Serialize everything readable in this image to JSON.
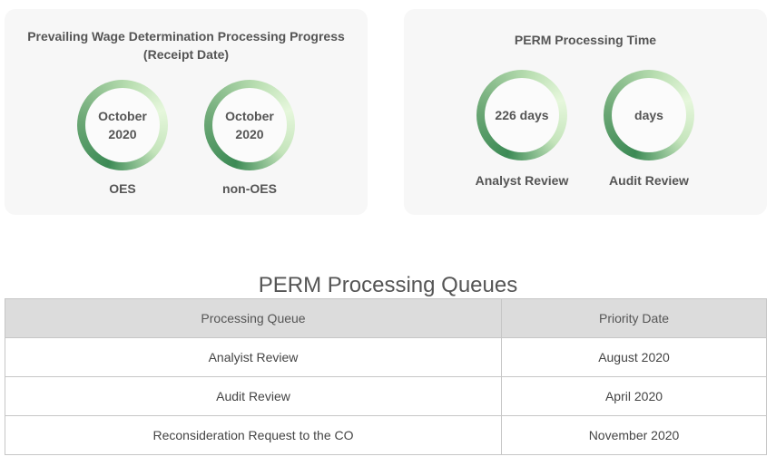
{
  "pwd_panel": {
    "title_line1": "Prevailing Wage Determination Processing Progress",
    "title_line2": "(Receipt Date)",
    "circles": [
      {
        "line1": "October",
        "line2": "2020",
        "label": "OES"
      },
      {
        "line1": "October",
        "line2": "2020",
        "label": "non-OES"
      }
    ]
  },
  "perm_panel": {
    "title": "PERM Processing Time",
    "circles": [
      {
        "value": "226 days",
        "label": "Analyst Review"
      },
      {
        "value": "days",
        "label": "Audit Review"
      }
    ]
  },
  "queues": {
    "title": "PERM Processing Queues",
    "headers": [
      "Processing Queue",
      "Priority Date"
    ],
    "rows": [
      [
        "Analyist Review",
        "August 2020"
      ],
      [
        "Audit Review",
        "April 2020"
      ],
      [
        "Reconsideration Request to the CO",
        "November 2020"
      ]
    ]
  },
  "colors": {
    "ring_dark": "#3c8a55",
    "ring_light": "#e6f7dc",
    "panel_bg": "#f7f7f7",
    "table_header_bg": "#dcdcdc"
  }
}
